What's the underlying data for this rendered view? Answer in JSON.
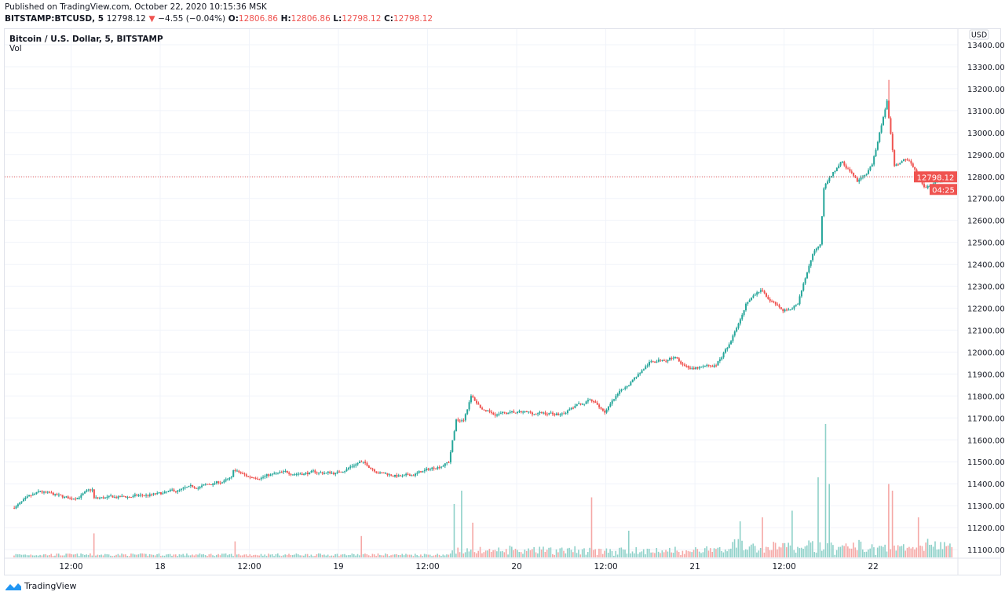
{
  "header": {
    "published": "Published on TradingView.com, October 22, 2020 10:15:36 MSK",
    "symbol": "BITSTAMP:BTCUSD, 5",
    "last": "12798.12",
    "change": "−4.55 (−0.04%)",
    "arrow": "▼",
    "o_label": "O:",
    "o": "12806.86",
    "h_label": "H:",
    "h": "12806.86",
    "l_label": "L:",
    "l": "12798.12",
    "c_label": "C:",
    "c": "12798.12"
  },
  "legend": {
    "title": "Bitcoin / U.S. Dollar, 5, BITSTAMP",
    "vol": "Vol"
  },
  "currency": "USD",
  "price_tag": "12798.12",
  "countdown": "04:25",
  "brand": "TradingView",
  "colors": {
    "up": "#26a69a",
    "down": "#ef5350",
    "up_vol": "#8fd1c9",
    "down_vol": "#f5a8a6",
    "grid": "#f0f3fa",
    "brand": "#2196f3"
  },
  "chart_data": {
    "type": "candlestick",
    "interval": "5 minutes",
    "ylim": [
      11050,
      13450
    ],
    "y_ticks": [
      "11100.00",
      "11200.00",
      "11300.00",
      "11400.00",
      "11500.00",
      "11600.00",
      "11700.00",
      "11800.00",
      "11900.00",
      "12000.00",
      "12100.00",
      "12200.00",
      "12300.00",
      "12400.00",
      "12500.00",
      "12600.00",
      "12700.00",
      "12800.00",
      "12900.00",
      "13000.00",
      "13100.00",
      "13200.00",
      "13300.00",
      "13400.00"
    ],
    "x_ticks": [
      [
        "10-17 12:00",
        "12:00"
      ],
      [
        "10-18 00:00",
        "18"
      ],
      [
        "10-18 12:00",
        "12:00"
      ],
      [
        "10-19 00:00",
        "19"
      ],
      [
        "10-19 12:00",
        "12:00"
      ],
      [
        "10-20 00:00",
        "20"
      ],
      [
        "10-20 12:00",
        "12:00"
      ],
      [
        "10-21 00:00",
        "21"
      ],
      [
        "10-21 12:00",
        "12:00"
      ],
      [
        "10-22 00:00",
        "22"
      ]
    ],
    "close_path": [
      [
        "10-17 04:15",
        11290
      ],
      [
        "10-17 08:00",
        11360
      ],
      [
        "10-17 12:00",
        11330
      ],
      [
        "10-17 15:00",
        11370
      ],
      [
        "10-17 15:10",
        11330
      ],
      [
        "10-18 00:00",
        11350
      ],
      [
        "10-18 06:00",
        11390
      ],
      [
        "10-18 09:45",
        11420
      ],
      [
        "10-18 10:00",
        11460
      ],
      [
        "10-18 12:00",
        11430
      ],
      [
        "10-18 18:00",
        11450
      ],
      [
        "10-19 00:00",
        11450
      ],
      [
        "10-19 03:00",
        11500
      ],
      [
        "10-19 06:00",
        11450
      ],
      [
        "10-19 09:00",
        11430
      ],
      [
        "10-19 12:00",
        11460
      ],
      [
        "10-19 15:00",
        11500
      ],
      [
        "10-19 16:00",
        11690
      ],
      [
        "10-19 17:00",
        11700
      ],
      [
        "10-19 18:00",
        11800
      ],
      [
        "10-19 20:00",
        11720
      ],
      [
        "10-20 00:00",
        11720
      ],
      [
        "10-20 06:00",
        11720
      ],
      [
        "10-20 10:00",
        11780
      ],
      [
        "10-20 12:00",
        11730
      ],
      [
        "10-20 15:00",
        11850
      ],
      [
        "10-20 18:00",
        11950
      ],
      [
        "10-20 21:00",
        11980
      ],
      [
        "10-21 00:00",
        11920
      ],
      [
        "10-21 03:00",
        11940
      ],
      [
        "10-21 05:00",
        12050
      ],
      [
        "10-21 07:00",
        12230
      ],
      [
        "10-21 09:00",
        12280
      ],
      [
        "10-21 12:00",
        12180
      ],
      [
        "10-21 14:00",
        12220
      ],
      [
        "10-21 16:00",
        12450
      ],
      [
        "10-21 17:00",
        12500
      ],
      [
        "10-21 17:30",
        12760
      ],
      [
        "10-21 20:00",
        12870
      ],
      [
        "10-21 22:00",
        12780
      ],
      [
        "10-22 00:00",
        12850
      ],
      [
        "10-22 02:00",
        13150
      ],
      [
        "10-22 03:00",
        12850
      ],
      [
        "10-22 05:00",
        12880
      ],
      [
        "10-22 07:00",
        12740
      ],
      [
        "10-22 09:00",
        12780
      ],
      [
        "10-22 10:40",
        12798.12
      ]
    ],
    "high": 13240,
    "last_price": 12798.12,
    "volume_spikes": [
      [
        "10-17 15:00",
        0.18
      ],
      [
        "10-18 10:00",
        0.12
      ],
      [
        "10-19 03:00",
        0.16
      ],
      [
        "10-19 15:30",
        0.4
      ],
      [
        "10-19 16:30",
        0.5
      ],
      [
        "10-19 18:00",
        0.26
      ],
      [
        "10-20 10:00",
        0.45
      ],
      [
        "10-20 15:00",
        0.2
      ],
      [
        "10-21 06:00",
        0.27
      ],
      [
        "10-21 09:00",
        0.3
      ],
      [
        "10-21 13:00",
        0.35
      ],
      [
        "10-21 16:30",
        0.6
      ],
      [
        "10-21 17:30",
        1.0
      ],
      [
        "10-21 18:00",
        0.55
      ],
      [
        "10-22 02:00",
        0.55
      ],
      [
        "10-22 02:30",
        0.5
      ],
      [
        "10-22 06:00",
        0.3
      ]
    ]
  }
}
